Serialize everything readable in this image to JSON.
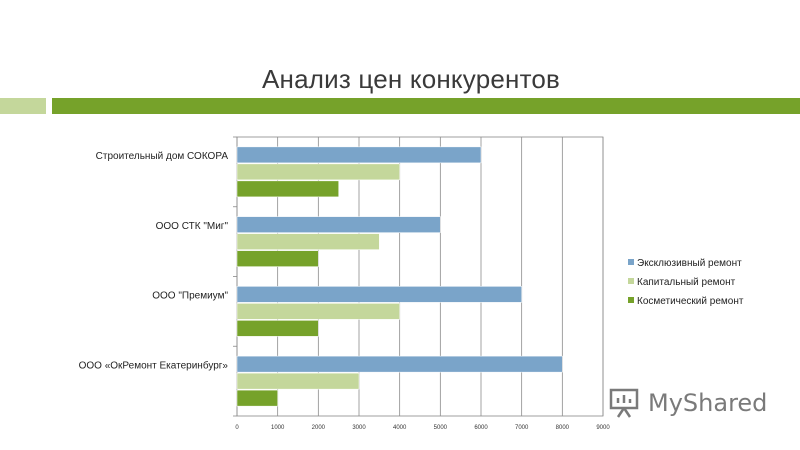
{
  "slide": {
    "title": "Анализ цен конкурентов",
    "accent_colors": {
      "light": "#c4d79b",
      "dark": "#76a22a"
    }
  },
  "chart_data": {
    "type": "bar",
    "orientation": "horizontal",
    "categories": [
      "Строительный дом СОКОРА",
      "ООО СТК \"Миг\"",
      "ООО \"Премиум\"",
      "ООО «ОкРемонт Екатеринбург»"
    ],
    "series": [
      {
        "name": "Эксклюзивный ремонт",
        "color": "#7aa4c9",
        "values": [
          6000,
          5000,
          7000,
          8000
        ]
      },
      {
        "name": "Капитальный ремонт",
        "color": "#c4d79b",
        "values": [
          4000,
          3500,
          4000,
          3000
        ]
      },
      {
        "name": "Косметический ремонт",
        "color": "#76a22a",
        "values": [
          2500,
          2000,
          2000,
          1000
        ]
      }
    ],
    "xlim": [
      0,
      9000
    ],
    "x_ticks": [
      "0",
      "1000",
      "2000",
      "3000",
      "4000",
      "5000",
      "6000",
      "7000",
      "8000",
      "9000"
    ],
    "grid": true,
    "legend_position": "right"
  },
  "watermark": {
    "text": "MyShared",
    "icon": "presentation-board-icon"
  }
}
